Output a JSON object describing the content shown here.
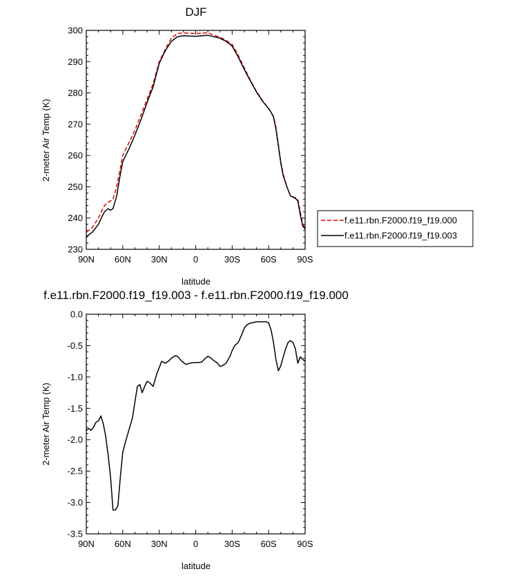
{
  "chart_data": [
    {
      "type": "line",
      "title": "DJF",
      "xlabel": "latitude",
      "ylabel": "2-meter Air Temp (K)",
      "xlim": [
        -90,
        90
      ],
      "ylim": [
        230,
        300
      ],
      "xticks": [
        -90,
        -60,
        -30,
        0,
        30,
        60,
        90
      ],
      "xticklabels": [
        "90N",
        "60N",
        "30N",
        "0",
        "30S",
        "60S",
        "90S"
      ],
      "yticks": [
        230,
        240,
        250,
        260,
        270,
        280,
        290,
        300
      ],
      "yticklabels": [
        "230",
        "240",
        "250",
        "260",
        "270",
        "280",
        "290",
        "300"
      ],
      "legend": "right",
      "series": [
        {
          "name": "f.e11.rbn.F2000.f19_f19.000",
          "color": "#e00000",
          "dash": "dashed",
          "x": [
            -90,
            -85,
            -80,
            -77,
            -75,
            -72,
            -70,
            -68,
            -65,
            -62,
            -60,
            -55,
            -50,
            -45,
            -40,
            -35,
            -30,
            -25,
            -20,
            -15,
            -10,
            -5,
            0,
            5,
            10,
            15,
            20,
            25,
            30,
            35,
            40,
            45,
            50,
            55,
            60,
            62,
            64,
            66,
            68,
            70,
            72,
            75,
            78,
            80,
            82,
            84,
            86,
            88,
            90
          ],
          "y": [
            235.5,
            237,
            240,
            242.5,
            244,
            245,
            245.5,
            246,
            250,
            256,
            260,
            264,
            268,
            273,
            278,
            283,
            290,
            294,
            297.5,
            299,
            299.2,
            299.1,
            299,
            299.1,
            299.2,
            298.5,
            297.8,
            296.8,
            295.5,
            292,
            288,
            284,
            280.5,
            277.5,
            275,
            273.8,
            272.5,
            269,
            263.5,
            258,
            254,
            250,
            247,
            246.8,
            246.5,
            246,
            242,
            238,
            237
          ]
        },
        {
          "name": "f.e11.rbn.F2000.f19_f19.003",
          "color": "#000000",
          "dash": "solid",
          "x": [
            -90,
            -85,
            -80,
            -77,
            -75,
            -72,
            -70,
            -68,
            -65,
            -62,
            -60,
            -55,
            -50,
            -45,
            -40,
            -35,
            -30,
            -25,
            -20,
            -15,
            -10,
            -5,
            0,
            5,
            10,
            15,
            20,
            25,
            30,
            35,
            40,
            45,
            50,
            55,
            60,
            62,
            64,
            66,
            68,
            70,
            72,
            75,
            78,
            80,
            82,
            84,
            86,
            88,
            90
          ],
          "y": [
            234,
            235.5,
            238,
            240.5,
            242,
            243,
            242.5,
            243,
            247,
            254,
            258,
            262,
            266.5,
            271.5,
            277,
            282,
            289.5,
            293.5,
            296.5,
            298,
            298.3,
            298.2,
            298.1,
            298.3,
            298.4,
            298,
            297.5,
            296.5,
            295,
            291.5,
            287.5,
            283.8,
            280.3,
            277.3,
            275,
            273.8,
            272.3,
            268.5,
            263,
            257.5,
            253.5,
            250,
            247,
            246.7,
            246.3,
            245.5,
            241,
            237.5,
            236.5
          ]
        }
      ]
    },
    {
      "type": "line",
      "title": "f.e11.rbn.F2000.f19_f19.003 - f.e11.rbn.F2000.f19_f19.000",
      "xlabel": "latitude",
      "ylabel": "2-meter Air Temp (K)",
      "xlim": [
        -90,
        90
      ],
      "ylim": [
        -3.5,
        0.0
      ],
      "xticks": [
        -90,
        -60,
        -30,
        0,
        30,
        60,
        90
      ],
      "xticklabels": [
        "90N",
        "60N",
        "30N",
        "0",
        "30S",
        "60S",
        "90S"
      ],
      "yticks": [
        -3.5,
        -3.0,
        -2.5,
        -2.0,
        -1.5,
        -1.0,
        -0.5,
        0.0
      ],
      "yticklabels": [
        "-3.5",
        "-3.0",
        "-2.5",
        "-2.0",
        "-1.5",
        "-1.0",
        "-0.5",
        "0.0"
      ],
      "series": [
        {
          "color": "#000000",
          "dash": "solid",
          "x": [
            -90,
            -88,
            -86,
            -84,
            -82,
            -80,
            -78,
            -76,
            -74,
            -72,
            -70,
            -68,
            -66,
            -64,
            -62,
            -60,
            -58,
            -55,
            -52,
            -50,
            -48,
            -46,
            -44,
            -42,
            -40,
            -38,
            -35,
            -32,
            -30,
            -28,
            -25,
            -22,
            -20,
            -17,
            -15,
            -12,
            -10,
            -8,
            -5,
            -2,
            0,
            2,
            5,
            8,
            10,
            12,
            15,
            18,
            20,
            22,
            25,
            28,
            30,
            32,
            35,
            38,
            40,
            42,
            45,
            48,
            50,
            52,
            55,
            58,
            60,
            62,
            64,
            66,
            68,
            70,
            72,
            74,
            76,
            78,
            80,
            82,
            84,
            86,
            88,
            90
          ],
          "y": [
            -1.85,
            -1.82,
            -1.85,
            -1.8,
            -1.72,
            -1.7,
            -1.62,
            -1.75,
            -1.95,
            -2.25,
            -2.6,
            -3.12,
            -3.12,
            -3.05,
            -2.6,
            -2.2,
            -2.05,
            -1.85,
            -1.65,
            -1.4,
            -1.15,
            -1.12,
            -1.25,
            -1.15,
            -1.07,
            -1.09,
            -1.15,
            -0.95,
            -0.85,
            -0.75,
            -0.78,
            -0.74,
            -0.7,
            -0.66,
            -0.67,
            -0.74,
            -0.77,
            -0.8,
            -0.78,
            -0.77,
            -0.77,
            -0.77,
            -0.76,
            -0.7,
            -0.67,
            -0.69,
            -0.74,
            -0.78,
            -0.83,
            -0.82,
            -0.78,
            -0.68,
            -0.58,
            -0.5,
            -0.45,
            -0.32,
            -0.22,
            -0.17,
            -0.14,
            -0.13,
            -0.12,
            -0.12,
            -0.12,
            -0.12,
            -0.14,
            -0.25,
            -0.45,
            -0.72,
            -0.9,
            -0.82,
            -0.68,
            -0.55,
            -0.45,
            -0.42,
            -0.45,
            -0.55,
            -0.78,
            -0.68,
            -0.72,
            -0.75
          ]
        }
      ]
    }
  ]
}
